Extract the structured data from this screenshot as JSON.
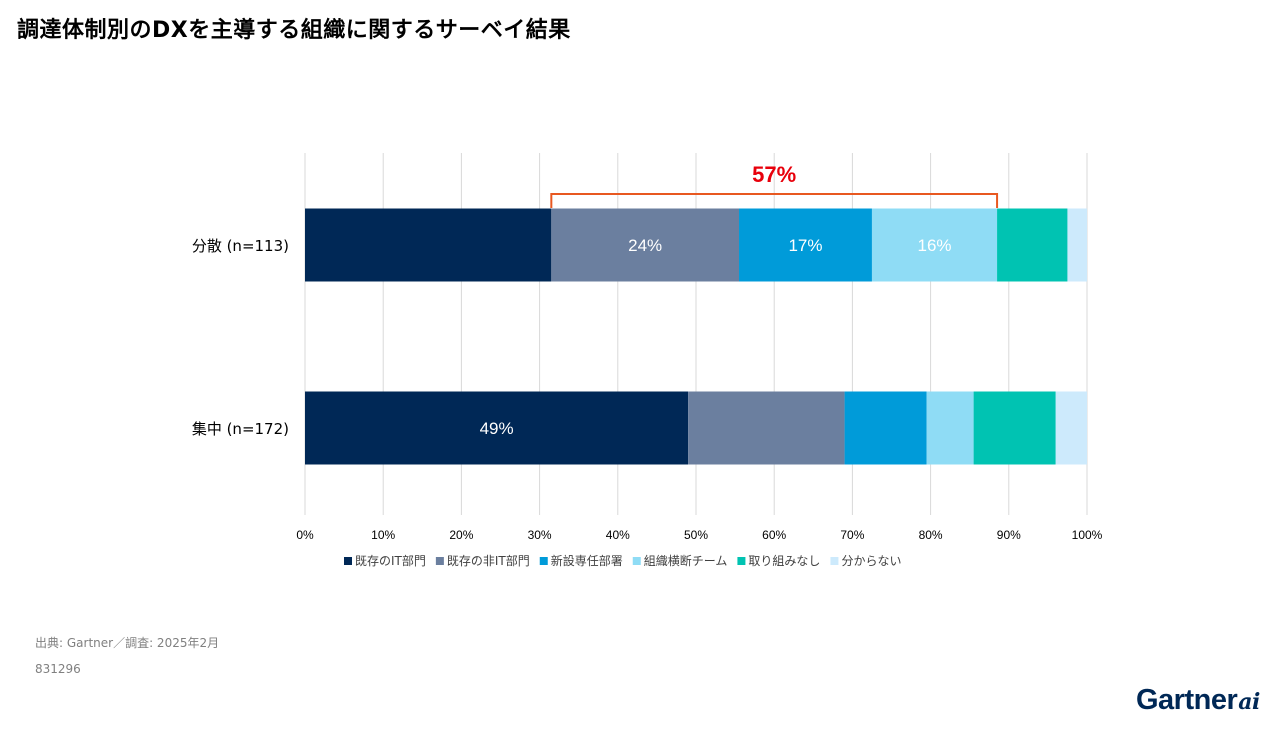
{
  "title": "調達体制別のDXを主導する組織に関するサーベイ結果",
  "source": "出典: Gartner／調査: 2025年2月",
  "doc_id": "831296",
  "logo": {
    "text": "Gartner",
    "suffix": "ai"
  },
  "chart_data": {
    "type": "bar",
    "orientation": "horizontal",
    "stacked": true,
    "percent_stacked": true,
    "categories": [
      "分散 (n=113)",
      "集中 (n=172)"
    ],
    "series": [
      {
        "name": "既存のIT部門",
        "color": "#002856",
        "values": [
          31.5,
          49
        ],
        "labels": [
          "",
          "49%"
        ]
      },
      {
        "name": "既存の非IT部門",
        "color": "#6b7f9f",
        "values": [
          24,
          20
        ],
        "labels": [
          "24%",
          ""
        ]
      },
      {
        "name": "新設専任部署",
        "color": "#009bd9",
        "values": [
          17,
          10.5
        ],
        "labels": [
          "17%",
          ""
        ]
      },
      {
        "name": "組織横断チーム",
        "color": "#8fdcf5",
        "values": [
          16,
          6
        ],
        "labels": [
          "16%",
          ""
        ]
      },
      {
        "name": "取り組みなし",
        "color": "#00c3b2",
        "values": [
          9,
          10.5
        ],
        "labels": [
          "",
          ""
        ]
      },
      {
        "name": "分からない",
        "color": "#cdeafc",
        "values": [
          2.5,
          4
        ],
        "labels": [
          "",
          ""
        ]
      }
    ],
    "xlim": [
      0,
      100
    ],
    "x_ticks": [
      "0%",
      "10%",
      "20%",
      "30%",
      "40%",
      "50%",
      "60%",
      "70%",
      "80%",
      "90%",
      "100%"
    ],
    "grid": true,
    "legend_position": "bottom",
    "annotation": {
      "text": "57%",
      "color": "#e8000b",
      "bracket_color": "#e85820",
      "category": "分散 (n=113)",
      "series_from": 1,
      "series_to": 3
    }
  }
}
